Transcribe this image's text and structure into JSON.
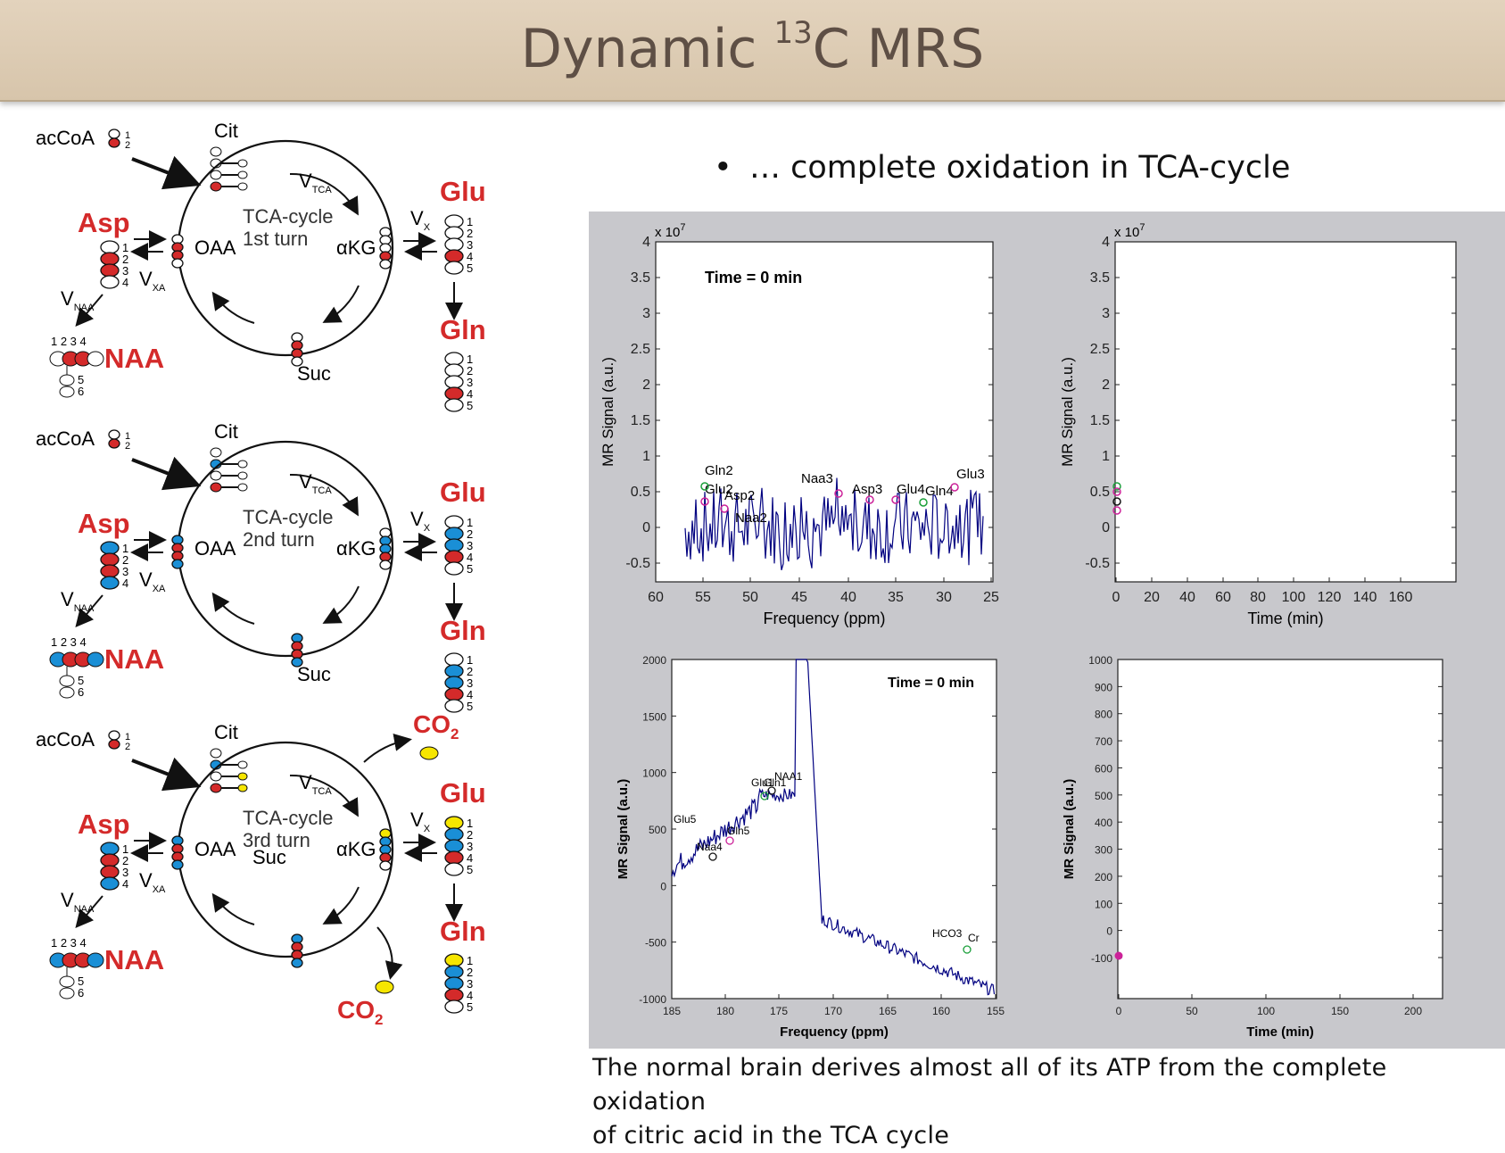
{
  "slide": {
    "title_main": "Dynamic ",
    "title_sup": "13",
    "title_tail": "C MRS",
    "bullet_text": "… complete oxidation in TCA-cycle",
    "caption_line1": "The normal brain derives almost all of its ATP from the complete oxidation",
    "caption_line2": "of citric acid in the TCA cycle"
  },
  "colors": {
    "title_bg": "#dccab0",
    "label_red": "#d42a2a",
    "carbon_red": "#d42a2a",
    "carbon_blue": "#1a8fd6",
    "carbon_yellow": "#f6e600",
    "plot_panel_bg": "#c8c8cc",
    "spectrum_line": "#000080"
  },
  "diagram": {
    "turns": [
      {
        "turn_line1": "TCA-cycle",
        "turn_line2": "1st turn"
      },
      {
        "turn_line1": "TCA-cycle",
        "turn_line2": "2nd turn"
      },
      {
        "turn_line1": "TCA-cycle",
        "turn_line2": "3rd turn"
      }
    ],
    "labels": {
      "accoa": "acCoA",
      "cit": "Cit",
      "oaa": "OAA",
      "akg": "αKG",
      "suc": "Suc",
      "asp": "Asp",
      "glu": "Glu",
      "gln": "Gln",
      "naa": "NAA",
      "co2": "CO",
      "co2_sub": "2",
      "v": "V",
      "v_tca_sub": "TCA",
      "v_x_sub": "X",
      "v_xa_sub": "XA",
      "v_naa_sub": "NAA",
      "naa_numbers": "1 2 3 4",
      "n1": "1",
      "n2": "2",
      "n3": "3",
      "n4": "4",
      "n5": "5",
      "n6": "6"
    }
  },
  "plots": [
    {
      "name": "spectrum-top-left",
      "multiplier": "x 10",
      "multiplier_exp": "7",
      "annotation": "Time = 0 min",
      "xlabel": "Frequency (ppm)",
      "ylabel": "MR Signal (a.u.)",
      "xticks": [
        "60",
        "55",
        "50",
        "45",
        "40",
        "35",
        "30",
        "25"
      ],
      "yticks": [
        "4",
        "3.5",
        "3",
        "2.5",
        "2",
        "1.5",
        "1",
        "0.5",
        "0",
        "-0.5"
      ],
      "peaks": [
        "Gln2",
        "Glu2",
        "Asp2",
        "Naa2",
        "Naa3",
        "Asp3",
        "Glu4",
        "Gln4",
        "Glu3"
      ]
    },
    {
      "name": "timecourse-top-right",
      "multiplier": "x 10",
      "multiplier_exp": "7",
      "xlabel": "Time (min)",
      "ylabel": "MR Signal (a.u.)",
      "xticks": [
        "0",
        "20",
        "40",
        "60",
        "80",
        "100",
        "120",
        "140",
        "160"
      ],
      "yticks": [
        "4",
        "3.5",
        "3",
        "2.5",
        "2",
        "1.5",
        "1",
        "0.5",
        "0",
        "-0.5"
      ]
    },
    {
      "name": "spectrum-bottom-left",
      "annotation": "Time = 0 min",
      "xlabel": "Frequency (ppm)",
      "ylabel": "MR Signal (a.u.)",
      "xticks": [
        "185",
        "180",
        "175",
        "170",
        "165",
        "160",
        "155"
      ],
      "yticks": [
        "2000",
        "1500",
        "1000",
        "500",
        "0",
        "-500",
        "-1000"
      ],
      "peaks": [
        "Glu5",
        "Naa4",
        "Gln5",
        "Glu1",
        "Gln1",
        "NAA1",
        "HCO3",
        "Cr"
      ]
    },
    {
      "name": "timecourse-bottom-right",
      "xlabel": "Time (min)",
      "ylabel": "MR Signal (a.u.)",
      "xticks": [
        "0",
        "50",
        "100",
        "150",
        "200"
      ],
      "yticks": [
        "1000",
        "900",
        "800",
        "700",
        "600",
        "500",
        "400",
        "300",
        "200",
        "100",
        "0",
        "-100"
      ]
    }
  ]
}
